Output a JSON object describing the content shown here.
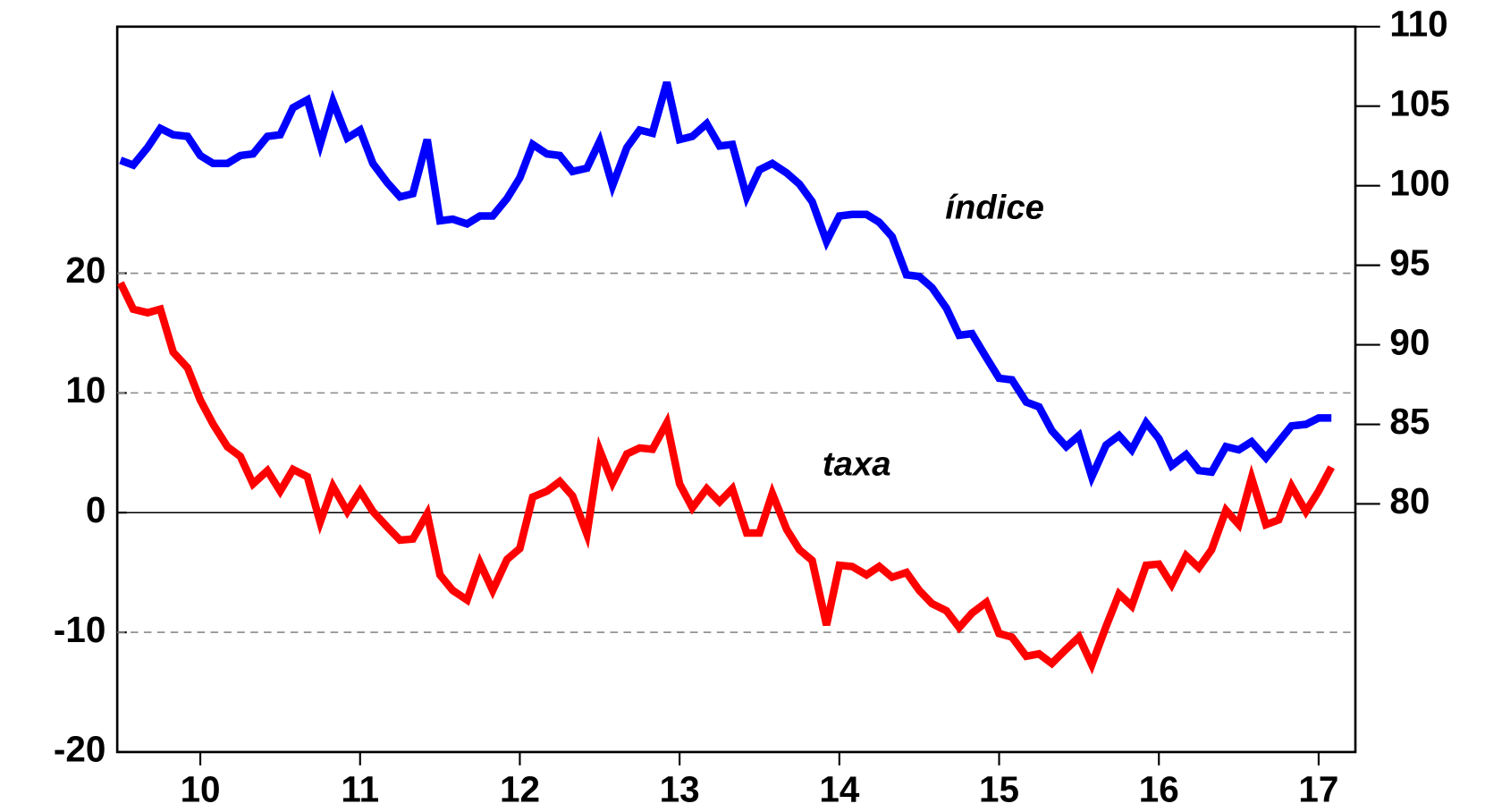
{
  "chart_data": {
    "type": "line",
    "annotations": [
      "índice",
      "taxa"
    ],
    "x": [
      2010,
      2010.08,
      2010.17,
      2010.25,
      2010.33,
      2010.42,
      2010.5,
      2010.58,
      2010.67,
      2010.75,
      2010.83,
      2010.92,
      2011,
      2011.08,
      2011.17,
      2011.25,
      2011.33,
      2011.42,
      2011.5,
      2011.58,
      2011.67,
      2011.75,
      2011.83,
      2011.92,
      2012,
      2012.08,
      2012.17,
      2012.25,
      2012.33,
      2012.42,
      2012.5,
      2012.58,
      2012.67,
      2012.75,
      2012.83,
      2012.92,
      2013,
      2013.08,
      2013.17,
      2013.25,
      2013.33,
      2013.42,
      2013.5,
      2013.58,
      2013.67,
      2013.75,
      2013.83,
      2013.92,
      2014,
      2014.08,
      2014.17,
      2014.25,
      2014.33,
      2014.42,
      2014.5,
      2014.58,
      2014.67,
      2014.75,
      2014.83,
      2014.92,
      2015,
      2015.08,
      2015.17,
      2015.25,
      2015.33,
      2015.42,
      2015.5,
      2015.58,
      2015.67,
      2015.75,
      2015.83,
      2015.92,
      2016,
      2016.08,
      2016.17,
      2016.25,
      2016.33,
      2016.42,
      2016.5,
      2016.58,
      2016.67,
      2016.75,
      2016.83,
      2016.92,
      2017,
      2017.08,
      2017.17,
      2017.25,
      2017.33,
      2017.42,
      2017.5,
      2017.58
    ],
    "series": [
      {
        "name": "índice",
        "color": "#0000ff",
        "axis": "y2",
        "values": [
          101.6,
          101.3,
          102.4,
          103.6,
          103.2,
          103.1,
          101.9,
          101.4,
          101.4,
          101.9,
          102.0,
          103.1,
          103.2,
          104.9,
          105.4,
          102.6,
          105.3,
          103.0,
          103.5,
          101.4,
          100.2,
          99.3,
          99.5,
          102.9,
          97.8,
          97.9,
          97.6,
          98.1,
          98.1,
          99.2,
          100.5,
          102.6,
          102.0,
          101.9,
          100.9,
          101.1,
          102.8,
          100.0,
          102.4,
          103.5,
          103.3,
          106.5,
          102.9,
          103.1,
          103.9,
          102.5,
          102.6,
          99.3,
          101.0,
          101.4,
          100.8,
          100.1,
          99.0,
          96.5,
          98.1,
          98.2,
          98.2,
          97.7,
          96.8,
          94.4,
          94.3,
          93.6,
          92.3,
          90.6,
          90.7,
          89.2,
          87.9,
          87.8,
          86.4,
          86.1,
          84.6,
          83.6,
          84.3,
          81.7,
          83.7,
          84.3,
          83.4,
          85.1,
          84.1,
          82.4,
          83.1,
          82.1,
          82.0,
          83.6,
          83.4,
          83.9,
          82.9,
          83.9,
          84.9,
          85.0,
          85.4,
          85.4
        ]
      },
      {
        "name": "taxa",
        "color": "#ff0000",
        "axis": "y",
        "values": [
          19.2,
          17.0,
          16.7,
          17.0,
          13.4,
          12.1,
          9.4,
          7.4,
          5.5,
          4.7,
          2.4,
          3.5,
          1.8,
          3.6,
          3.0,
          -0.8,
          2.2,
          0.1,
          1.8,
          0.1,
          -1.2,
          -2.3,
          -2.2,
          -0.1,
          -5.2,
          -6.5,
          -7.3,
          -4.2,
          -6.5,
          -3.9,
          -3.0,
          1.3,
          1.8,
          2.6,
          1.4,
          -1.8,
          5.2,
          2.5,
          4.9,
          5.4,
          5.3,
          7.5,
          2.4,
          0.4,
          2.0,
          0.9,
          2.0,
          -1.7,
          -1.7,
          1.6,
          -1.4,
          -3.1,
          -4.0,
          -9.4,
          -4.4,
          -4.5,
          -5.2,
          -4.5,
          -5.4,
          -5.0,
          -6.5,
          -7.6,
          -8.2,
          -9.6,
          -8.4,
          -7.5,
          -10.1,
          -10.4,
          -12.0,
          -11.8,
          -12.6,
          -11.4,
          -10.4,
          -12.7,
          -9.5,
          -6.8,
          -7.8,
          -4.4,
          -4.3,
          -6.0,
          -3.6,
          -4.6,
          -3.1,
          0.2,
          -1.0,
          2.9,
          -1.0,
          -0.6,
          2.2,
          0.1,
          1.8,
          3.8
        ]
      }
    ],
    "xlim": [
      2009.98,
      2017.73
    ],
    "xticks": [
      {
        "value": 2010.5,
        "label": "10"
      },
      {
        "value": 2011.5,
        "label": "11"
      },
      {
        "value": 2012.5,
        "label": "12"
      },
      {
        "value": 2013.5,
        "label": "13"
      },
      {
        "value": 2014.5,
        "label": "14"
      },
      {
        "value": 2015.5,
        "label": "15"
      },
      {
        "value": 2016.5,
        "label": "16"
      },
      {
        "value": 2017.5,
        "label": "17"
      }
    ],
    "ylim": [
      -20,
      40.6
    ],
    "yticks": [
      -20,
      -10,
      0,
      10,
      20
    ],
    "y2lim": [
      64.4,
      110
    ],
    "y2ticks": [
      80,
      85,
      90,
      95,
      100,
      105,
      110
    ],
    "grid": true
  }
}
